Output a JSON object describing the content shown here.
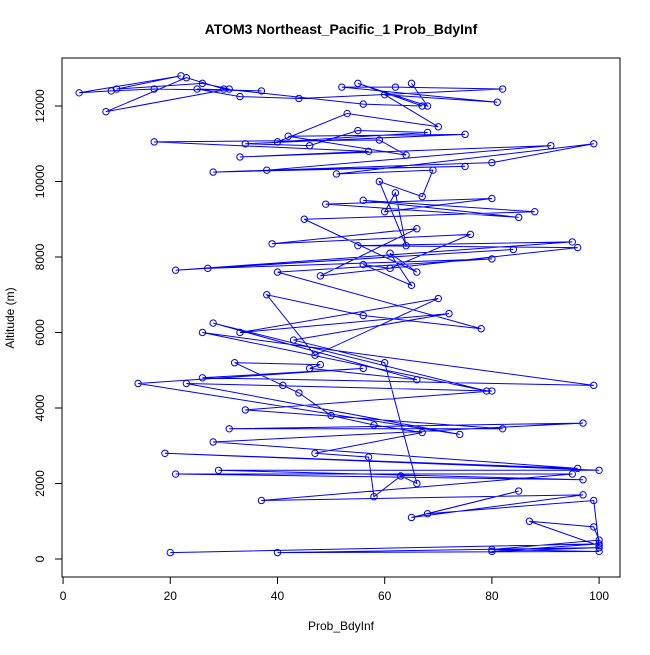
{
  "chart_data": {
    "type": "line",
    "title": "ATOM3 Northeast_Pacific_1 Prob_BdyInf",
    "x_label": "Prob_BdyInf",
    "y_label": "Altitude (m)",
    "color": "#0000ff",
    "markers": true,
    "x": [
      20,
      100,
      80,
      100,
      40,
      100,
      80,
      100,
      99,
      87,
      100,
      99,
      68,
      85,
      65,
      97,
      37,
      95,
      21,
      97,
      29,
      100,
      19,
      96,
      28,
      97,
      31,
      82,
      34,
      80,
      23,
      74,
      14,
      56,
      26,
      99,
      26,
      79,
      28,
      66,
      46,
      48,
      32,
      41,
      44,
      50,
      58,
      67,
      47,
      57,
      58,
      63,
      66,
      60,
      43,
      72,
      33,
      70,
      47,
      38,
      56,
      78,
      40,
      80,
      27,
      84,
      21,
      95,
      55,
      96,
      48,
      66,
      39,
      76,
      61,
      56,
      65,
      61,
      66,
      45,
      88,
      56,
      85,
      49,
      80,
      60,
      62,
      64,
      59,
      67,
      69,
      51,
      99,
      80,
      28,
      75,
      38,
      91,
      33,
      57,
      17,
      59,
      64,
      42,
      75,
      34,
      46,
      55,
      68,
      40,
      53,
      70,
      60,
      81,
      52,
      62,
      82,
      44,
      33,
      25,
      37,
      17,
      9,
      3,
      22,
      10,
      26,
      31,
      8,
      23,
      30,
      56,
      67,
      55,
      68,
      65
    ],
    "values": [
      170,
      400,
      200,
      300,
      170,
      200,
      250,
      500,
      850,
      1000,
      350,
      1550,
      1200,
      1800,
      1100,
      1700,
      1550,
      2250,
      2250,
      2100,
      2350,
      2350,
      2800,
      2400,
      3100,
      3600,
      3450,
      3450,
      3950,
      4450,
      4650,
      3300,
      4650,
      5050,
      4800,
      4600,
      6000,
      4450,
      6250,
      4750,
      5050,
      5150,
      5200,
      4600,
      4400,
      3800,
      3550,
      3350,
      2800,
      2700,
      1650,
      2200,
      2000,
      5200,
      5800,
      6500,
      6000,
      6900,
      5400,
      7000,
      6450,
      6100,
      7600,
      7950,
      7700,
      8200,
      7650,
      8400,
      8300,
      8250,
      7500,
      8750,
      8350,
      8600,
      7700,
      7800,
      7250,
      8100,
      7600,
      9000,
      9200,
      9500,
      9050,
      9400,
      9550,
      9200,
      9700,
      8300,
      10000,
      9600,
      10300,
      10200,
      11000,
      10500,
      10250,
      10400,
      10300,
      10950,
      10650,
      10800,
      11050,
      11100,
      10700,
      11200,
      11250,
      11000,
      10950,
      11350,
      11300,
      11050,
      11800,
      11450,
      12300,
      12100,
      12500,
      12500,
      12450,
      12200,
      12250,
      12450,
      12400,
      12450,
      12400,
      12350,
      12800,
      12450,
      12600,
      12450,
      11850,
      12750,
      12450,
      12050,
      12000,
      12600,
      12000,
      12600
    ],
    "xlim": [
      -0.2,
      103.9
    ],
    "ylim": [
      -477,
      13272
    ],
    "xticks": [
      0,
      20,
      40,
      60,
      80,
      100
    ],
    "yticks": [
      0,
      2000,
      4000,
      6000,
      8000,
      10000,
      12000
    ]
  }
}
